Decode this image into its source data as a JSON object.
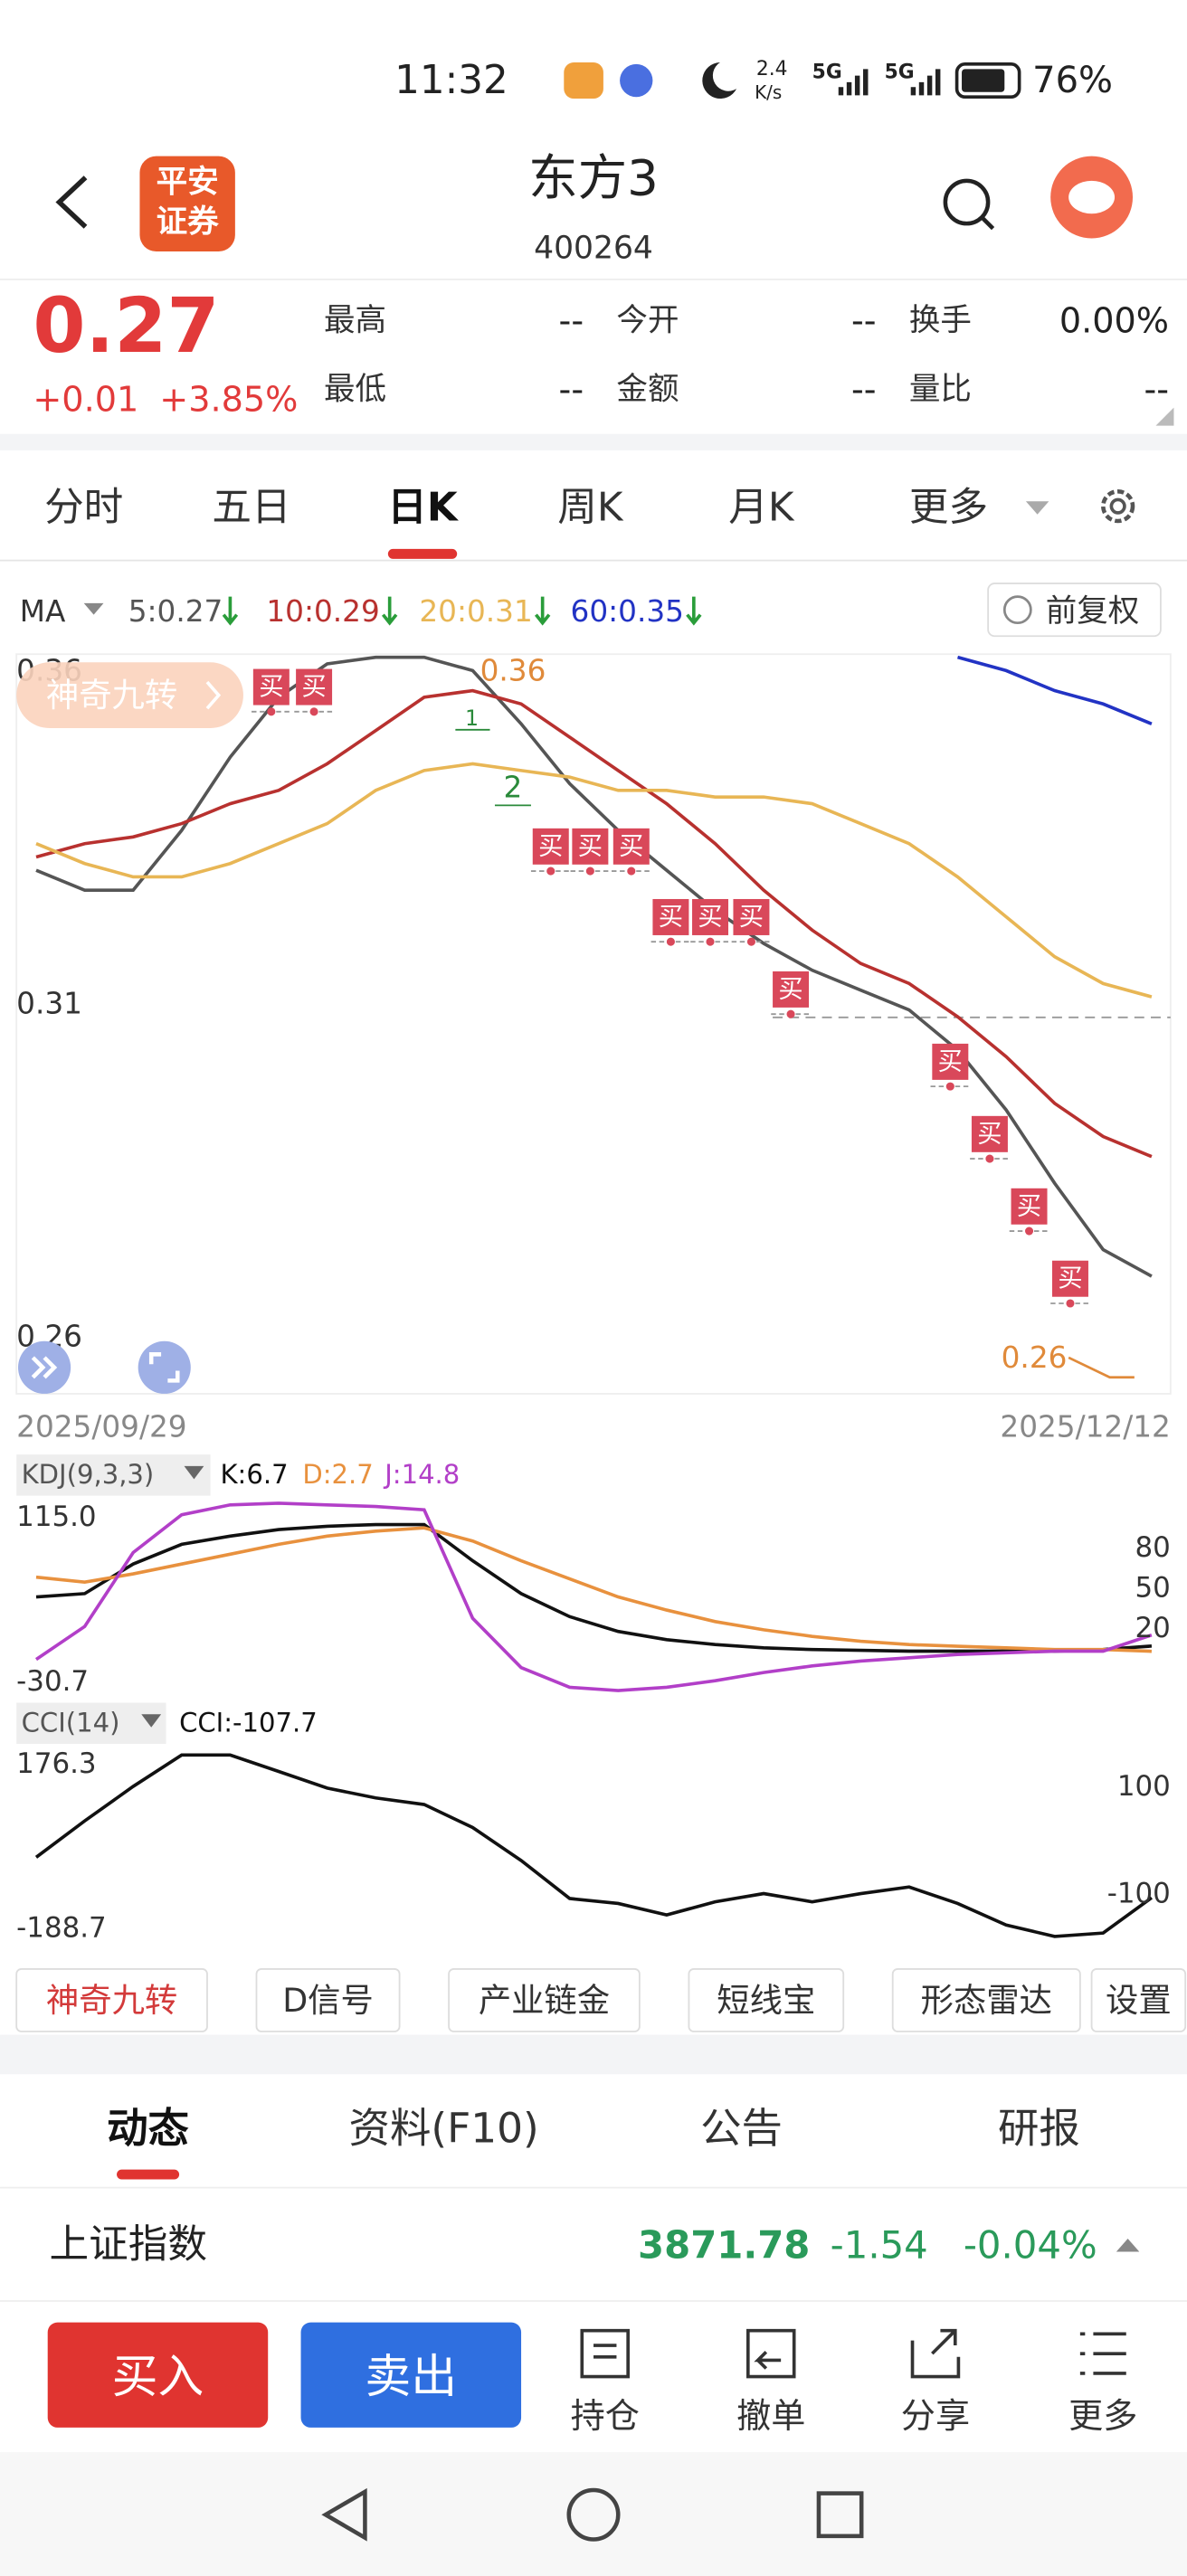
{
  "status_bar": {
    "time": "11:32",
    "speed_value": "2.4",
    "speed_unit": "K/s",
    "network_1": "5G",
    "network_2": "5G",
    "battery": "76%"
  },
  "header": {
    "logo_line_1": "平安",
    "logo_line_2": "证券",
    "title": "东方3",
    "code": "400264"
  },
  "quote": {
    "price": "0.27",
    "change": "+0.01",
    "change_pct": "+3.85%",
    "fields": [
      {
        "label": "最高",
        "value": "--"
      },
      {
        "label": "今开",
        "value": "--"
      },
      {
        "label": "换手",
        "value": "0.00%"
      },
      {
        "label": "最低",
        "value": "--"
      },
      {
        "label": "金额",
        "value": "--"
      },
      {
        "label": "量比",
        "value": "--"
      }
    ]
  },
  "period_tabs": {
    "items": [
      "分时",
      "五日",
      "日K",
      "周K",
      "月K",
      "更多"
    ],
    "active": "日K"
  },
  "ma_header": {
    "label": "MA",
    "adjust": "前复权"
  },
  "chart_data": [
    {
      "type": "line",
      "badge": "神奇九转",
      "buy_label": "买",
      "count_1": "1",
      "count_2": "2",
      "max_label": "0.36",
      "min_label": "0.26",
      "x_start_label": "2025/09/29",
      "x_end_label": "2025/12/12",
      "x": [
        0,
        1,
        2,
        3,
        4,
        5,
        6,
        7,
        8,
        9,
        10,
        11,
        12,
        13,
        14,
        15,
        16,
        17,
        18,
        19,
        20,
        21,
        22,
        23
      ],
      "xlim": [
        0,
        23
      ],
      "ylim": [
        0.26,
        0.36
      ],
      "yticks": [
        0.36,
        0.31,
        0.26
      ],
      "series": [
        {
          "name": "5:0.27",
          "color": "#555555",
          "values": [
            0.33,
            0.327,
            0.327,
            0.336,
            0.347,
            0.356,
            0.361,
            0.362,
            0.362,
            0.36,
            0.352,
            0.343,
            0.336,
            0.33,
            0.324,
            0.319,
            0.315,
            0.312,
            0.309,
            0.303,
            0.294,
            0.283,
            0.273,
            0.269
          ]
        },
        {
          "name": "10:0.29",
          "color": "#b8312f",
          "values": [
            0.332,
            0.334,
            0.335,
            0.337,
            0.34,
            0.342,
            0.346,
            0.351,
            0.356,
            0.357,
            0.355,
            0.35,
            0.345,
            0.34,
            0.334,
            0.327,
            0.321,
            0.316,
            0.313,
            0.308,
            0.302,
            0.295,
            0.29,
            0.287
          ]
        },
        {
          "name": "20:0.31",
          "color": "#e8b655",
          "values": [
            0.334,
            0.331,
            0.329,
            0.329,
            0.331,
            0.334,
            0.337,
            0.342,
            0.345,
            0.346,
            0.345,
            0.344,
            0.342,
            0.342,
            0.341,
            0.341,
            0.34,
            0.337,
            0.334,
            0.329,
            0.323,
            0.317,
            0.313,
            0.311
          ]
        },
        {
          "name": "60:0.35",
          "color": "#2233c4",
          "values": [
            null,
            null,
            null,
            null,
            null,
            null,
            null,
            null,
            null,
            null,
            null,
            null,
            null,
            null,
            null,
            null,
            null,
            null,
            null,
            0.362,
            0.36,
            0.357,
            0.355,
            0.352
          ]
        }
      ]
    },
    {
      "type": "line",
      "indicator": "KDJ(9,3,3)",
      "x": [
        0,
        1,
        2,
        3,
        4,
        5,
        6,
        7,
        8,
        9,
        10,
        11,
        12,
        13,
        14,
        15,
        16,
        17,
        18,
        19,
        20,
        21,
        22,
        23
      ],
      "xlim": [
        0,
        23
      ],
      "ylim": [
        -30.7,
        115
      ],
      "yrange_labels": [
        {
          "value": 115,
          "label": "115.0"
        },
        -30.7
      ],
      "yticks": [
        80,
        50,
        20
      ],
      "series": [
        {
          "name": "K:6.7",
          "color": "#111111",
          "values": [
            43.3,
            45.7,
            67.8,
            82.4,
            88.6,
            93.5,
            95.9,
            97.1,
            97.1,
            70.2,
            45.7,
            28.6,
            17.6,
            11.4,
            7.8,
            5.3,
            4.1,
            3.5,
            2.9,
            2.9,
            2.9,
            2.9,
            4.1,
            6.7
          ]
        },
        {
          "name": "D:2.7",
          "color": "#e8913e",
          "values": [
            58.0,
            54.3,
            60.4,
            67.8,
            75.1,
            82.4,
            88.6,
            92.2,
            94.7,
            84.9,
            70.2,
            56.7,
            43.3,
            33.5,
            24.9,
            18.8,
            13.9,
            10.2,
            7.8,
            6.5,
            5.3,
            4.1,
            4.1,
            2.7
          ]
        },
        {
          "name": "J:14.8",
          "color": "#b23fc8",
          "values": [
            -3.3,
            21.2,
            76.3,
            104.5,
            111.8,
            113.1,
            111.8,
            110.6,
            108.2,
            27.3,
            -9.4,
            -24.1,
            -26.5,
            -24.1,
            -19.2,
            -13.1,
            -8.2,
            -4.5,
            -2.0,
            0.4,
            1.6,
            2.9,
            2.9,
            14.8
          ]
        }
      ]
    },
    {
      "type": "line",
      "indicator": "CCI(14)",
      "x": [
        0,
        1,
        2,
        3,
        4,
        5,
        6,
        7,
        8,
        9,
        10,
        11,
        12,
        13,
        14,
        15,
        16,
        17,
        18,
        19,
        20,
        21,
        22,
        23
      ],
      "xlim": [
        0,
        23
      ],
      "ylim": [
        -188.7,
        176.3
      ],
      "yrange_labels": [
        176.3,
        -188.7
      ],
      "yticks": [
        100,
        -100
      ],
      "series": [
        {
          "name": "CCI:-107.7",
          "color": "#111111",
          "values": [
            -32.3,
            35.4,
            100,
            158.5,
            158.5,
            127.7,
            96.9,
            78.5,
            66.2,
            23.1,
            -38.5,
            -109.2,
            -118.5,
            -140,
            -115.4,
            -100,
            -115.4,
            -100,
            -87.7,
            -118.5,
            -158.5,
            -180,
            -173.8,
            -107.7
          ]
        }
      ]
    }
  ],
  "tool_tabs": [
    "神奇九转",
    "D信号",
    "产业链金",
    "短线宝",
    "形态雷达",
    "设置"
  ],
  "section_tabs": {
    "items": [
      "动态",
      "资料(F10)",
      "公告",
      "研报"
    ],
    "active": "动态"
  },
  "index_row": {
    "name": "上证指数",
    "value": "3871.78",
    "change": "-1.54",
    "change_pct": "-0.04%"
  },
  "bottom_bar": {
    "buy": "买入",
    "sell": "卖出",
    "items": [
      "持仓",
      "撤单",
      "分享",
      "更多"
    ]
  }
}
